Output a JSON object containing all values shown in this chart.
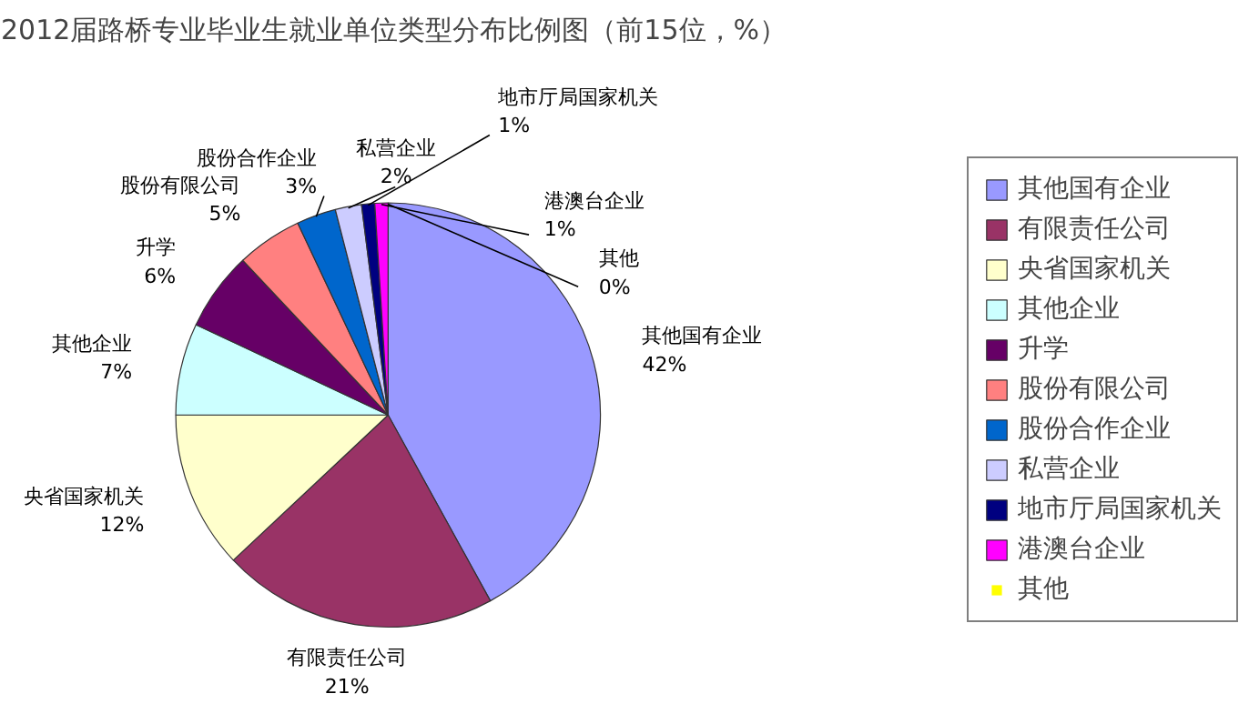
{
  "chart_data": {
    "type": "pie",
    "title": "2012届路桥专业毕业生就业单位类型分布比例图（前15位，%）",
    "categories": [
      "其他国有企业",
      "有限责任公司",
      "央省国家机关",
      "其他企业",
      "升学",
      "股份有限公司",
      "股份合作企业",
      "私营企业",
      "地市厅局国家机关",
      "港澳台企业",
      "其他"
    ],
    "values": [
      42,
      21,
      12,
      7,
      6,
      5,
      3,
      2,
      1,
      1,
      0
    ],
    "value_labels": [
      "42%",
      "21%",
      "12%",
      "7%",
      "6%",
      "5%",
      "3%",
      "2%",
      "1%",
      "1%",
      "0%"
    ],
    "colors": [
      "#9999ff",
      "#993366",
      "#ffffcc",
      "#ccffff",
      "#660066",
      "#ff8080",
      "#0066cc",
      "#ccccff",
      "#000080",
      "#ff00ff",
      "#ffff00"
    ],
    "legend": "right"
  }
}
